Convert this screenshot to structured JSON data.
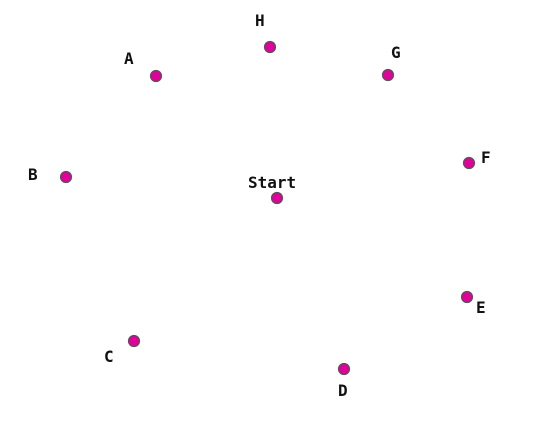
{
  "diagram": {
    "dot_color": "#e0009a",
    "points": [
      {
        "id": "start",
        "label": "Start"
      },
      {
        "id": "a",
        "label": "A"
      },
      {
        "id": "b",
        "label": "B"
      },
      {
        "id": "c",
        "label": "C"
      },
      {
        "id": "d",
        "label": "D"
      },
      {
        "id": "e",
        "label": "E"
      },
      {
        "id": "f",
        "label": "F"
      },
      {
        "id": "g",
        "label": "G"
      },
      {
        "id": "h",
        "label": "H"
      }
    ]
  }
}
